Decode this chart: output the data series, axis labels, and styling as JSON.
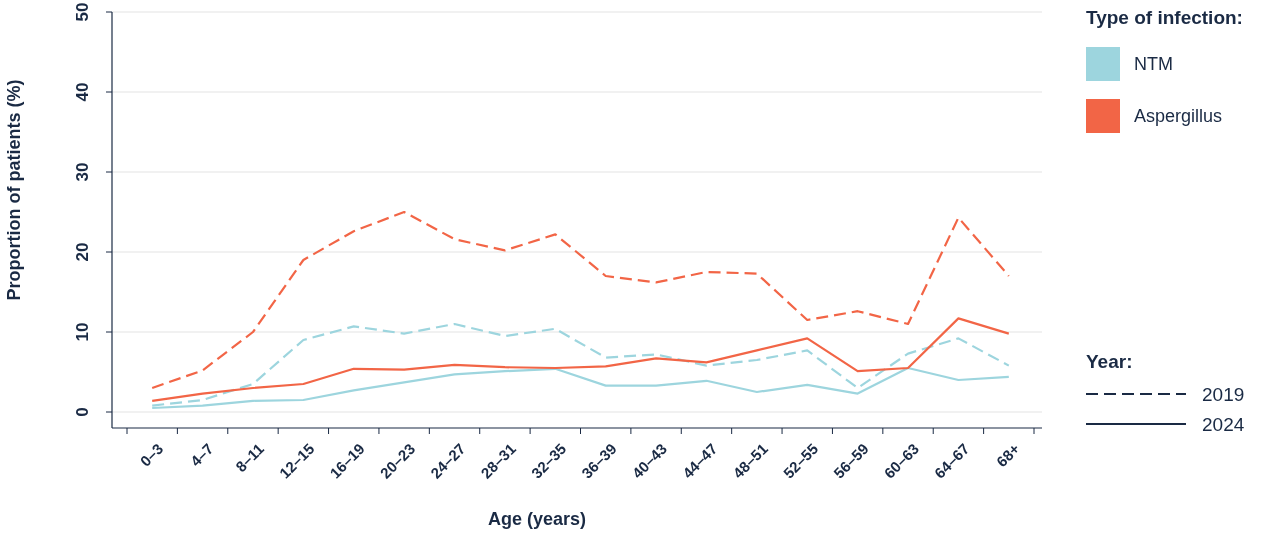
{
  "chart_data": {
    "type": "line",
    "xlabel": "Age (years)",
    "ylabel": "Proportion of patients (%)",
    "legend_title": "Type of infection:",
    "legend": "top right",
    "grid": "y",
    "categories": [
      "0–3",
      "4–7",
      "8–11",
      "12–15",
      "16–19",
      "20–23",
      "24–27",
      "28–31",
      "32–35",
      "36–39",
      "40–43",
      "44–47",
      "48–51",
      "52–55",
      "56–59",
      "60–63",
      "64–67",
      "68+"
    ],
    "ylim": [
      -2,
      50
    ],
    "yticks": [
      0,
      10,
      20,
      30,
      40,
      50
    ],
    "series": [
      {
        "name": "NTM",
        "color": "#9dd5de",
        "line_style": "dashed",
        "values": [
          0.8,
          1.5,
          3.5,
          9,
          10.7,
          9.8,
          11,
          9.5,
          10.4,
          6.8,
          7.2,
          5.8,
          6.5,
          7.7,
          3,
          7.3,
          9.2,
          5.8
        ]
      },
      {
        "name": "Aspergillus",
        "color": "#f26546",
        "line_style": "dashed",
        "values": [
          3,
          5.2,
          10,
          19,
          22.6,
          25,
          21.6,
          20.2,
          22.2,
          17,
          16.2,
          17.5,
          17.3,
          11.5,
          12.6,
          11,
          24.3,
          17
        ]
      },
      {
        "color": "#9dd5de",
        "line_style": "solid",
        "values": [
          0.5,
          0.8,
          1.4,
          1.5,
          2.7,
          3.7,
          4.7,
          5.1,
          5.4,
          3.3,
          3.3,
          3.9,
          2.5,
          3.4,
          2.3,
          5.5,
          4,
          4.4
        ]
      },
      {
        "color": "#f26546",
        "line_style": "solid",
        "values": [
          1.4,
          2.3,
          3,
          3.5,
          5.4,
          5.3,
          5.9,
          5.6,
          5.5,
          5.7,
          6.7,
          6.2,
          7.7,
          9.2,
          5.1,
          5.5,
          11.7,
          9.8
        ]
      }
    ],
    "annotations": [
      "Year:",
      "2019",
      "2024"
    ]
  }
}
